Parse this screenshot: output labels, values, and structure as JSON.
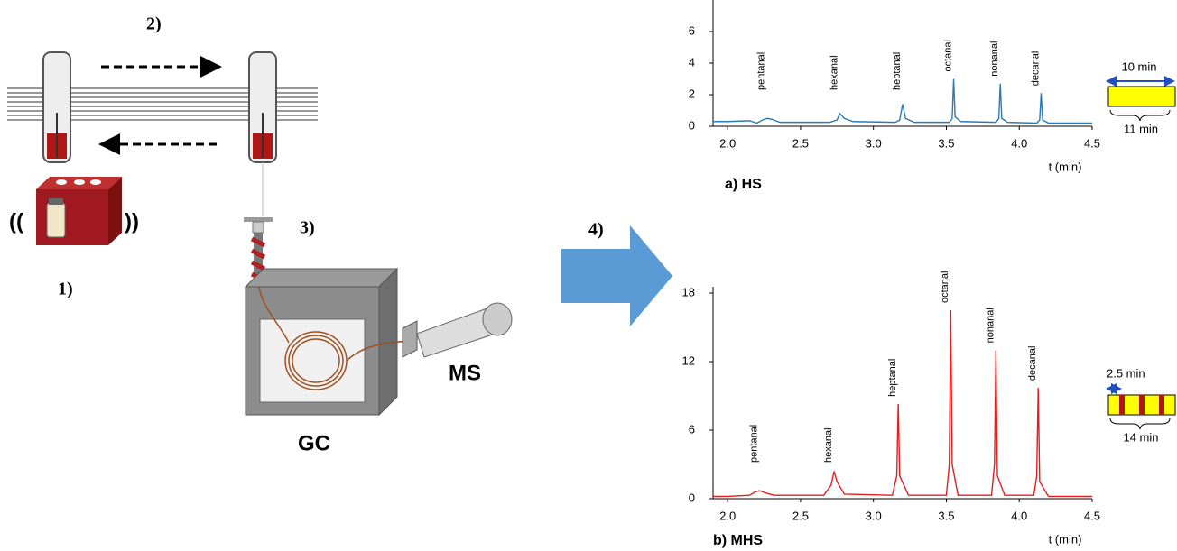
{
  "diagram": {
    "steps": [
      "1)",
      "2)",
      "3)",
      "4)"
    ],
    "gc": "GC",
    "ms": "MS",
    "shake_left": "((",
    "shake_right": "))"
  },
  "chart_data": [
    {
      "type": "line",
      "caption": "a) HS",
      "xlabel": "t (min)",
      "xlim": [
        1.9,
        4.5
      ],
      "ylim": [
        0,
        8
      ],
      "xticks": [
        {
          "value": 2.0,
          "label": "2.0"
        },
        2.5,
        {
          "value": 3.0,
          "label": "3.0"
        },
        3.5,
        {
          "value": 4.0,
          "label": "4.0"
        },
        4.5
      ],
      "yticks": [
        0,
        2,
        4,
        6
      ],
      "series": [
        {
          "color": "#2a7ab8",
          "x": [
            1.9,
            2.0,
            2.15,
            2.2,
            2.24,
            2.27,
            2.3,
            2.36,
            2.7,
            2.75,
            2.77,
            2.8,
            2.86,
            3.15,
            3.18,
            3.2,
            3.22,
            3.28,
            3.52,
            3.54,
            3.55,
            3.56,
            3.6,
            3.84,
            3.86,
            3.87,
            3.88,
            3.92,
            4.12,
            4.14,
            4.15,
            4.16,
            4.2,
            4.5
          ],
          "values": [
            0.3,
            0.3,
            0.35,
            0.2,
            0.4,
            0.5,
            0.45,
            0.25,
            0.25,
            0.4,
            0.8,
            0.5,
            0.3,
            0.25,
            0.4,
            1.4,
            0.5,
            0.25,
            0.25,
            0.5,
            3.0,
            0.6,
            0.3,
            0.25,
            0.5,
            2.7,
            0.5,
            0.25,
            0.2,
            0.4,
            2.1,
            0.4,
            0.2,
            0.2
          ]
        }
      ],
      "annotations": [
        {
          "text": "pentanal",
          "x": 2.27
        },
        {
          "text": "hexanal",
          "x": 2.77
        },
        {
          "text": "heptanal",
          "x": 3.2
        },
        {
          "text": "octanal",
          "x": 3.55
        },
        {
          "text": "nonanal",
          "x": 3.87
        },
        {
          "text": "decanal",
          "x": 4.15
        }
      ],
      "inset": {
        "top_label": "10 min",
        "bottom_label": "11 min"
      }
    },
    {
      "type": "line",
      "caption": "b) MHS",
      "xlabel": "t (min)",
      "xlim": [
        1.9,
        4.5
      ],
      "ylim": [
        0,
        18
      ],
      "xticks": [
        {
          "value": 2.0,
          "label": "2.0"
        },
        2.5,
        {
          "value": 3.0,
          "label": "3.0"
        },
        3.5,
        {
          "value": 4.0,
          "label": "4.0"
        },
        4.5
      ],
      "yticks": [
        0,
        6,
        12,
        18
      ],
      "series": [
        {
          "color": "#e02020",
          "x": [
            1.9,
            2.0,
            2.15,
            2.19,
            2.22,
            2.26,
            2.32,
            2.66,
            2.71,
            2.73,
            2.75,
            2.8,
            3.13,
            3.16,
            3.17,
            3.18,
            3.24,
            3.5,
            3.52,
            3.53,
            3.54,
            3.58,
            3.81,
            3.83,
            3.84,
            3.85,
            3.9,
            4.1,
            4.12,
            4.13,
            4.14,
            4.2,
            4.5
          ],
          "values": [
            0.2,
            0.2,
            0.3,
            0.6,
            0.7,
            0.5,
            0.3,
            0.3,
            1.2,
            2.4,
            1.5,
            0.4,
            0.3,
            2,
            8.3,
            2,
            0.3,
            0.3,
            3,
            16.5,
            3,
            0.3,
            0.3,
            3,
            13.0,
            2,
            0.3,
            0.3,
            2,
            9.7,
            1.5,
            0.2,
            0.2
          ]
        }
      ],
      "annotations": [
        {
          "text": "pentanal",
          "x": 2.22
        },
        {
          "text": "hexanal",
          "x": 2.73
        },
        {
          "text": "heptanal",
          "x": 3.17
        },
        {
          "text": "octanal",
          "x": 3.53
        },
        {
          "text": "nonanal",
          "x": 3.84
        },
        {
          "text": "decanal",
          "x": 4.13
        }
      ],
      "inset": {
        "top_label": "2.5 min",
        "bottom_label": "14 min"
      }
    }
  ]
}
